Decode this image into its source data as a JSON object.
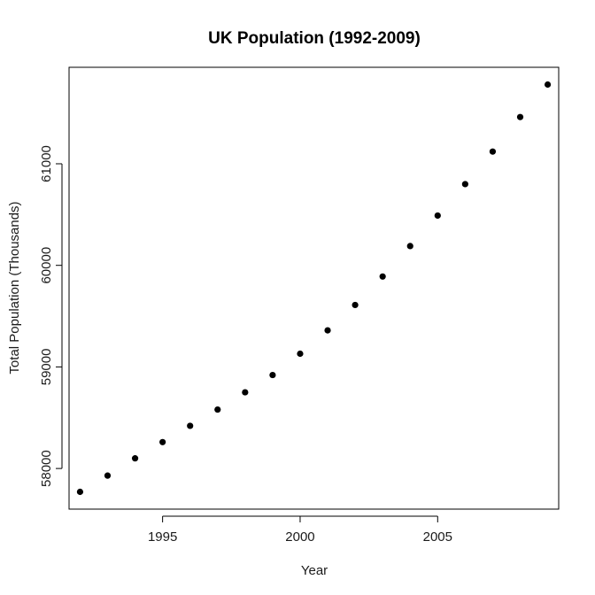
{
  "chart_data": {
    "type": "scatter",
    "title": "UK Population (1992-2009)",
    "xlabel": "Year",
    "ylabel": "Total Population (Thousands)",
    "xlim": [
      1991.6,
      2009.4
    ],
    "ylim": [
      57600,
      61950
    ],
    "xticks": [
      1995,
      2000,
      2005
    ],
    "yticks": [
      58000,
      59000,
      60000,
      61000
    ],
    "grid": false,
    "legend": "none",
    "point_color": "#000000",
    "x": [
      1992,
      1993,
      1994,
      1995,
      1996,
      1997,
      1998,
      1999,
      2000,
      2001,
      2002,
      2003,
      2004,
      2005,
      2006,
      2007,
      2008,
      2009
    ],
    "y": [
      57770,
      57930,
      58100,
      58260,
      58420,
      58580,
      58750,
      58920,
      59130,
      59360,
      59610,
      59890,
      60190,
      60490,
      60800,
      61120,
      61460,
      61780
    ]
  }
}
